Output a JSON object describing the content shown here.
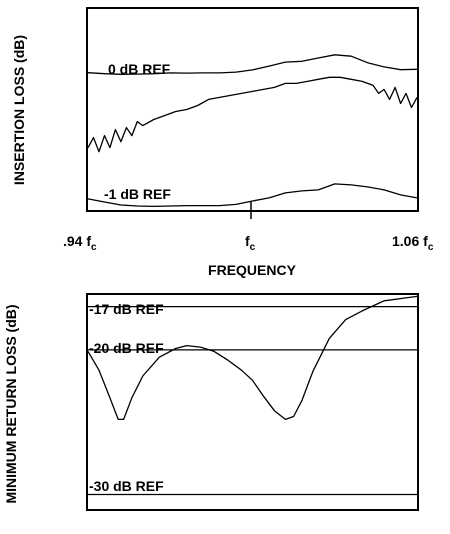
{
  "chart_data": [
    {
      "type": "line",
      "ylabel": "INSERTION LOSS (dB)",
      "xlabel": "FREQUENCY",
      "x_ticks": [
        {
          "main": ".94 f",
          "sub": "c",
          "value": 0.94
        },
        {
          "main": "f",
          "sub": "c",
          "value": 1.0
        },
        {
          "main": "1.06 f",
          "sub": "c",
          "value": 1.06
        }
      ],
      "xlim": [
        0.94,
        1.06
      ],
      "ylim": [
        0,
        1
      ],
      "grid": false,
      "reference_labels": [
        "0 dB REF",
        "-1 dB REF"
      ],
      "series": [
        {
          "values": [
            [
              0.94,
              0.683
            ],
            [
              0.946,
              0.678
            ],
            [
              0.952,
              0.675
            ],
            [
              0.958,
              0.676
            ],
            [
              0.964,
              0.678
            ],
            [
              0.97,
              0.682
            ],
            [
              0.976,
              0.681
            ],
            [
              0.982,
              0.682
            ],
            [
              0.988,
              0.682
            ],
            [
              0.994,
              0.686
            ],
            [
              1.0,
              0.697
            ],
            [
              1.006,
              0.716
            ],
            [
              1.012,
              0.736
            ],
            [
              1.018,
              0.74
            ],
            [
              1.024,
              0.756
            ],
            [
              1.03,
              0.772
            ],
            [
              1.036,
              0.765
            ],
            [
              1.042,
              0.733
            ],
            [
              1.048,
              0.712
            ],
            [
              1.054,
              0.698
            ],
            [
              1.06,
              0.7
            ]
          ]
        },
        {
          "values": [
            [
              0.94,
              0.31
            ],
            [
              0.942,
              0.36
            ],
            [
              0.944,
              0.29
            ],
            [
              0.946,
              0.37
            ],
            [
              0.948,
              0.31
            ],
            [
              0.95,
              0.4
            ],
            [
              0.952,
              0.34
            ],
            [
              0.954,
              0.41
            ],
            [
              0.956,
              0.37
            ],
            [
              0.958,
              0.44
            ],
            [
              0.96,
              0.42
            ],
            [
              0.964,
              0.45
            ],
            [
              0.968,
              0.47
            ],
            [
              0.972,
              0.49
            ],
            [
              0.976,
              0.5
            ],
            [
              0.98,
              0.52
            ],
            [
              0.984,
              0.55
            ],
            [
              0.988,
              0.56
            ],
            [
              0.992,
              0.57
            ],
            [
              0.996,
              0.58
            ],
            [
              1.0,
              0.59
            ],
            [
              1.004,
              0.6
            ],
            [
              1.008,
              0.61
            ],
            [
              1.012,
              0.63
            ],
            [
              1.016,
              0.63
            ],
            [
              1.02,
              0.64
            ],
            [
              1.024,
              0.65
            ],
            [
              1.028,
              0.66
            ],
            [
              1.032,
              0.66
            ],
            [
              1.036,
              0.65
            ],
            [
              1.04,
              0.64
            ],
            [
              1.044,
              0.62
            ],
            [
              1.046,
              0.58
            ],
            [
              1.048,
              0.6
            ],
            [
              1.05,
              0.55
            ],
            [
              1.052,
              0.61
            ],
            [
              1.054,
              0.53
            ],
            [
              1.056,
              0.58
            ],
            [
              1.058,
              0.51
            ],
            [
              1.06,
              0.56
            ]
          ]
        },
        {
          "values": [
            [
              0.94,
              0.055
            ],
            [
              0.946,
              0.04
            ],
            [
              0.952,
              0.025
            ],
            [
              0.958,
              0.02
            ],
            [
              0.964,
              0.018
            ],
            [
              0.97,
              0.02
            ],
            [
              0.976,
              0.022
            ],
            [
              0.982,
              0.022
            ],
            [
              0.988,
              0.022
            ],
            [
              0.994,
              0.028
            ],
            [
              1.0,
              0.045
            ],
            [
              1.006,
              0.06
            ],
            [
              1.012,
              0.085
            ],
            [
              1.018,
              0.095
            ],
            [
              1.024,
              0.1
            ],
            [
              1.03,
              0.13
            ],
            [
              1.036,
              0.125
            ],
            [
              1.042,
              0.115
            ],
            [
              1.048,
              0.1
            ],
            [
              1.054,
              0.075
            ],
            [
              1.06,
              0.06
            ]
          ]
        }
      ]
    },
    {
      "type": "line",
      "ylabel": "MINIMUM RETURN LOSS (dB)",
      "xlim": [
        0.94,
        1.06
      ],
      "ylim": [
        -31,
        -16.2
      ],
      "grid": false,
      "reference_lines": [
        {
          "label": "-17 dB REF",
          "value": -17
        },
        {
          "label": "-20 dB REF",
          "value": -20
        },
        {
          "label": "-30 dB REF",
          "value": -30
        }
      ],
      "series": [
        {
          "values": [
            [
              0.94,
              -20.1
            ],
            [
              0.944,
              -21.4
            ],
            [
              0.948,
              -23.3
            ],
            [
              0.951,
              -24.8
            ],
            [
              0.953,
              -24.8
            ],
            [
              0.956,
              -23.3
            ],
            [
              0.96,
              -21.8
            ],
            [
              0.966,
              -20.5
            ],
            [
              0.972,
              -19.9
            ],
            [
              0.976,
              -19.7
            ],
            [
              0.981,
              -19.8
            ],
            [
              0.986,
              -20.1
            ],
            [
              0.991,
              -20.7
            ],
            [
              0.996,
              -21.4
            ],
            [
              1.0,
              -22.1
            ],
            [
              1.004,
              -23.2
            ],
            [
              1.008,
              -24.2
            ],
            [
              1.012,
              -24.8
            ],
            [
              1.015,
              -24.6
            ],
            [
              1.018,
              -23.5
            ],
            [
              1.022,
              -21.5
            ],
            [
              1.028,
              -19.2
            ],
            [
              1.034,
              -17.9
            ],
            [
              1.04,
              -17.3
            ],
            [
              1.048,
              -16.6
            ],
            [
              1.056,
              -16.4
            ],
            [
              1.06,
              -16.3
            ]
          ]
        }
      ]
    }
  ]
}
